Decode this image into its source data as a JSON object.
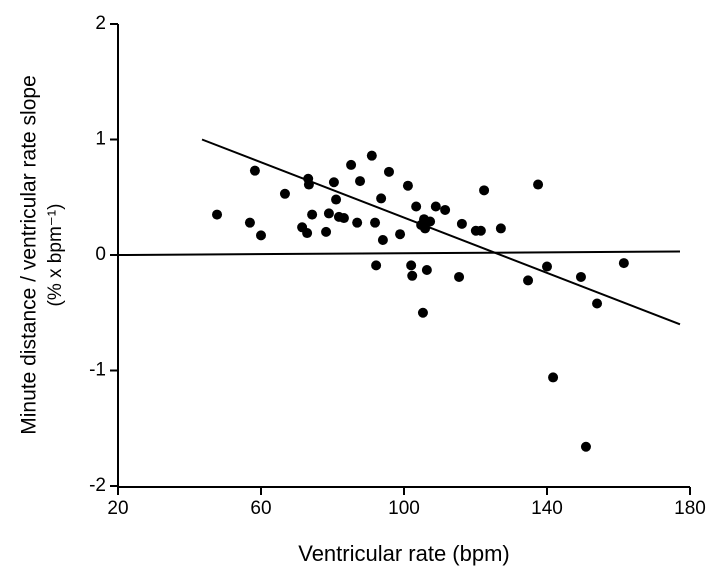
{
  "chart_data": {
    "type": "scatter",
    "x_label": "Ventricular rate (bpm)",
    "y_label": [
      "Minute distance / ventricular rate slope",
      "(% x bpm⁻¹)"
    ],
    "xlim": [
      20,
      180
    ],
    "xticks": [
      20,
      60,
      100,
      140,
      180
    ],
    "ylim": [
      -2,
      2
    ],
    "yticks": [
      -2,
      -1,
      0,
      1,
      2
    ],
    "color": "#000000",
    "x": [
      47.7,
      56.9,
      58.3,
      60,
      66.7,
      71.5,
      72.9,
      73.2,
      73.4,
      74.3,
      78.2,
      79,
      80.4,
      81,
      81.8,
      83.2,
      85.2,
      86.9,
      87.7,
      91,
      91.9,
      92.2,
      93.6,
      94.1,
      95.8,
      98.9,
      101.1,
      102,
      102.3,
      103.4,
      104.8,
      105.6,
      105.9,
      105.3,
      106.4,
      107.3,
      108.9,
      111.5,
      115.4,
      116.2,
      120.1,
      121.5,
      122.4,
      127.1,
      134.7,
      137.5,
      140,
      141.7,
      149.5,
      150.9,
      154,
      161.5
    ],
    "values": [
      0.35,
      0.28,
      0.73,
      0.17,
      0.53,
      0.24,
      0.19,
      0.66,
      0.61,
      0.35,
      0.2,
      0.36,
      0.63,
      0.48,
      0.33,
      0.32,
      0.78,
      0.28,
      0.64,
      0.86,
      0.28,
      -0.09,
      0.49,
      0.13,
      0.72,
      0.18,
      0.6,
      -0.09,
      -0.18,
      0.42,
      0.26,
      0.31,
      0.23,
      -0.5,
      -0.13,
      0.29,
      0.42,
      0.39,
      -0.19,
      0.27,
      0.21,
      0.21,
      0.56,
      0.23,
      -0.22,
      0.61,
      -0.1,
      -1.06,
      -0.19,
      -1.66,
      -0.42,
      -0.07
    ],
    "lines": [
      {
        "x": [
          43.5,
          177.2
        ],
        "values": [
          1.0,
          -0.6
        ]
      },
      {
        "x": [
          20,
          177.2
        ],
        "values": [
          0,
          0.03
        ]
      }
    ]
  }
}
